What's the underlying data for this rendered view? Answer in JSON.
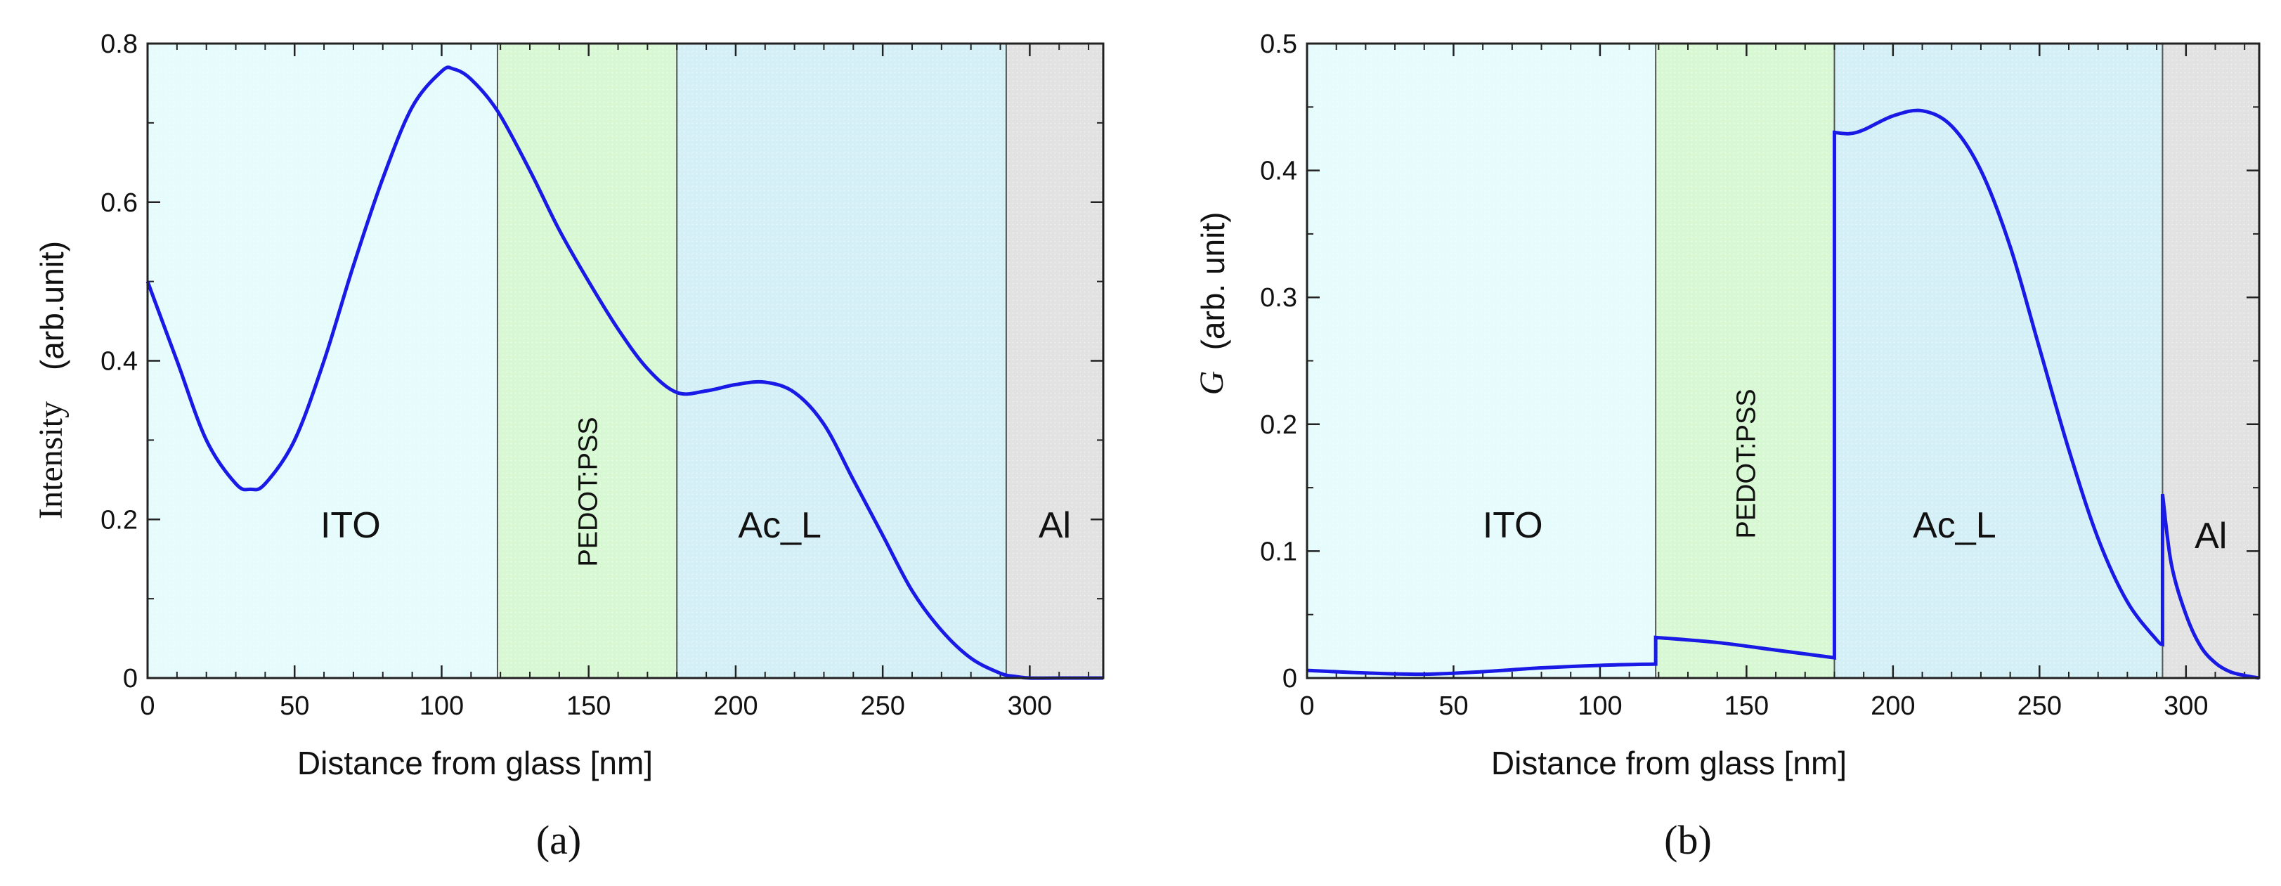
{
  "colors": {
    "ITO": "#e6fbfb",
    "PEDOT:PSS": "#d8f8d4",
    "Ac_L": "#d4f0f6",
    "Al": "#e2e2e2",
    "curve": "#1a1ae6",
    "boundary": "#555555"
  },
  "chart_data": [
    {
      "type": "line",
      "panel": "(a)",
      "xlabel": "Distance from glass   [nm]",
      "ylabel_main": "Intensity",
      "ylabel_unit": "(arb.unit)",
      "xlim": [
        0,
        325
      ],
      "ylim": [
        0,
        0.8
      ],
      "xticks": [
        0,
        50,
        100,
        150,
        200,
        250,
        300
      ],
      "yticks": [
        0,
        0.2,
        0.4,
        0.6,
        0.8
      ],
      "ytick_labels": [
        "0",
        "0.2",
        "0.4",
        "0.6",
        "0.8"
      ],
      "regions": [
        {
          "name": "ITO",
          "from": 0,
          "to": 119
        },
        {
          "name": "PEDOT:PSS",
          "from": 119,
          "to": 180
        },
        {
          "name": "Ac_L",
          "from": 180,
          "to": 292
        },
        {
          "name": "Al",
          "from": 292,
          "to": 325
        }
      ],
      "series": [
        {
          "name": "Intensity",
          "x": [
            0,
            10,
            20,
            30,
            35,
            40,
            50,
            60,
            70,
            80,
            90,
            100,
            104,
            110,
            119,
            130,
            140,
            150,
            160,
            170,
            180,
            190,
            200,
            210,
            220,
            230,
            240,
            250,
            260,
            270,
            280,
            290,
            295,
            300,
            310,
            325
          ],
          "y": [
            0.5,
            0.4,
            0.3,
            0.245,
            0.238,
            0.245,
            0.3,
            0.4,
            0.52,
            0.63,
            0.72,
            0.765,
            0.768,
            0.755,
            0.715,
            0.64,
            0.565,
            0.5,
            0.44,
            0.39,
            0.36,
            0.362,
            0.37,
            0.373,
            0.36,
            0.32,
            0.25,
            0.18,
            0.11,
            0.06,
            0.025,
            0.006,
            0.002,
            0.0,
            0.0,
            0.0
          ]
        }
      ]
    },
    {
      "type": "line",
      "panel": "(b)",
      "xlabel": "Distance from glass   [nm]",
      "ylabel_main": "G",
      "ylabel_unit": "(arb. unit)",
      "xlim": [
        0,
        325
      ],
      "ylim": [
        0,
        0.5
      ],
      "xticks": [
        0,
        50,
        100,
        150,
        200,
        250,
        300
      ],
      "yticks": [
        0,
        0.1,
        0.2,
        0.3,
        0.4,
        0.5
      ],
      "ytick_labels": [
        "0",
        "0.1",
        "0.2",
        "0.3",
        "0.4",
        "0.5"
      ],
      "regions": [
        {
          "name": "ITO",
          "from": 0,
          "to": 119
        },
        {
          "name": "PEDOT:PSS",
          "from": 119,
          "to": 180
        },
        {
          "name": "Ac_L",
          "from": 180,
          "to": 292
        },
        {
          "name": "Al",
          "from": 292,
          "to": 325
        }
      ],
      "series": [
        {
          "name": "G",
          "x": [
            0,
            20,
            40,
            60,
            80,
            100,
            119,
            119,
            140,
            160,
            180,
            180,
            185,
            190,
            200,
            210,
            220,
            230,
            240,
            250,
            260,
            270,
            280,
            290,
            292,
            292,
            295,
            300,
            305,
            310,
            315,
            320,
            325
          ],
          "y": [
            0.006,
            0.004,
            0.003,
            0.005,
            0.008,
            0.01,
            0.011,
            0.032,
            0.028,
            0.022,
            0.016,
            0.43,
            0.429,
            0.432,
            0.443,
            0.447,
            0.435,
            0.4,
            0.34,
            0.26,
            0.18,
            0.11,
            0.06,
            0.03,
            0.027,
            0.145,
            0.09,
            0.05,
            0.025,
            0.012,
            0.005,
            0.002,
            0.0
          ]
        }
      ]
    }
  ]
}
